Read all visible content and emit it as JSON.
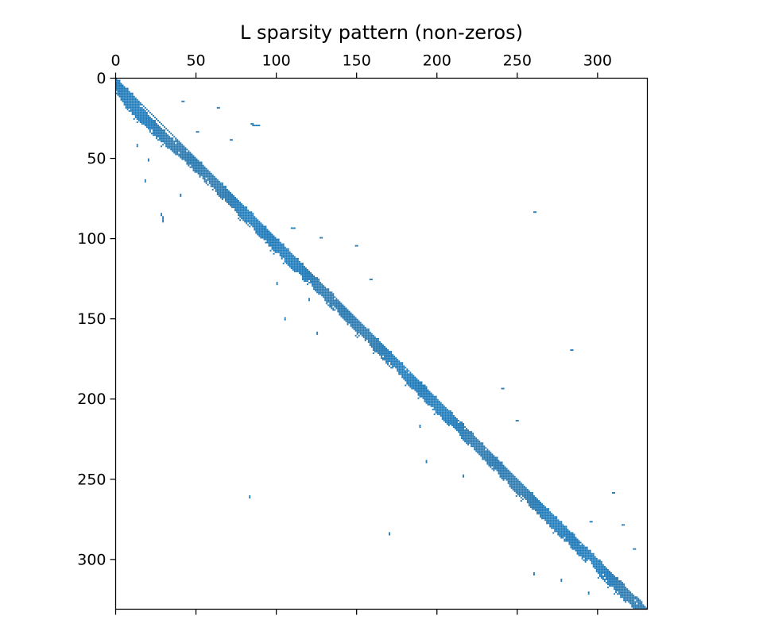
{
  "chart_data": {
    "type": "heatmap",
    "title": "L sparsity pattern (non-zeros)",
    "xlabel": "",
    "ylabel": "",
    "matrix_size": 331,
    "xlim": [
      0,
      331
    ],
    "ylim": [
      331,
      0
    ],
    "xticks": [
      0,
      50,
      100,
      150,
      200,
      250,
      300
    ],
    "yticks": [
      0,
      50,
      100,
      150,
      200,
      250,
      300
    ],
    "x_axis_position": "top",
    "grid": false,
    "marker_color": "#1f77b4",
    "diagonal_band": [
      {
        "row_start": 0,
        "row_end": 12,
        "col_start": 0,
        "col_end": 10
      },
      {
        "row_start": 8,
        "row_end": 22,
        "col_start": 5,
        "col_end": 20
      },
      {
        "row_start": 18,
        "row_end": 38,
        "col_start": 15,
        "col_end": 40
      },
      {
        "row_start": 38,
        "row_end": 55,
        "col_start": 38,
        "col_end": 55
      },
      {
        "row_start": 55,
        "row_end": 75,
        "col_start": 55,
        "col_end": 75
      },
      {
        "row_start": 75,
        "row_end": 100,
        "col_start": 75,
        "col_end": 100
      },
      {
        "row_start": 95,
        "row_end": 115,
        "col_start": 95,
        "col_end": 115
      },
      {
        "row_start": 108,
        "row_end": 125,
        "col_start": 108,
        "col_end": 125
      },
      {
        "row_start": 122,
        "row_end": 145,
        "col_start": 122,
        "col_end": 145
      },
      {
        "row_start": 145,
        "row_end": 165,
        "col_start": 145,
        "col_end": 165
      },
      {
        "row_start": 165,
        "row_end": 190,
        "col_start": 165,
        "col_end": 190
      },
      {
        "row_start": 185,
        "row_end": 210,
        "col_start": 185,
        "col_end": 210
      },
      {
        "row_start": 208,
        "row_end": 232,
        "col_start": 208,
        "col_end": 232
      },
      {
        "row_start": 232,
        "row_end": 255,
        "col_start": 232,
        "col_end": 255
      },
      {
        "row_start": 255,
        "row_end": 278,
        "col_start": 255,
        "col_end": 278
      },
      {
        "row_start": 278,
        "row_end": 305,
        "col_start": 278,
        "col_end": 305
      },
      {
        "row_start": 305,
        "row_end": 331,
        "col_start": 305,
        "col_end": 331
      }
    ],
    "off_diagonal_points": [
      [
        14,
        41
      ],
      [
        14,
        42
      ],
      [
        18,
        63
      ],
      [
        18,
        64
      ],
      [
        28,
        84
      ],
      [
        28,
        85
      ],
      [
        29,
        85
      ],
      [
        29,
        86
      ],
      [
        29,
        87
      ],
      [
        29,
        88
      ],
      [
        29,
        89
      ],
      [
        33,
        50
      ],
      [
        33,
        51
      ],
      [
        38,
        71
      ],
      [
        38,
        72
      ],
      [
        41,
        13
      ],
      [
        42,
        13
      ],
      [
        50,
        20
      ],
      [
        51,
        20
      ],
      [
        63,
        18
      ],
      [
        64,
        18
      ],
      [
        72,
        40
      ],
      [
        73,
        40
      ],
      [
        83,
        260
      ],
      [
        83,
        261
      ],
      [
        84,
        28
      ],
      [
        85,
        28
      ],
      [
        86,
        29
      ],
      [
        87,
        29
      ],
      [
        88,
        29
      ],
      [
        89,
        29
      ],
      [
        93,
        109
      ],
      [
        93,
        110
      ],
      [
        93,
        111
      ],
      [
        99,
        127
      ],
      [
        99,
        128
      ],
      [
        104,
        149
      ],
      [
        104,
        150
      ],
      [
        125,
        158
      ],
      [
        125,
        159
      ],
      [
        127,
        100
      ],
      [
        128,
        100
      ],
      [
        137,
        120
      ],
      [
        138,
        120
      ],
      [
        149,
        105
      ],
      [
        150,
        105
      ],
      [
        158,
        125
      ],
      [
        159,
        125
      ],
      [
        169,
        283
      ],
      [
        169,
        284
      ],
      [
        193,
        240
      ],
      [
        193,
        241
      ],
      [
        213,
        249
      ],
      [
        213,
        250
      ],
      [
        216,
        189
      ],
      [
        217,
        189
      ],
      [
        238,
        193
      ],
      [
        239,
        193
      ],
      [
        247,
        216
      ],
      [
        248,
        216
      ],
      [
        258,
        309
      ],
      [
        258,
        310
      ],
      [
        260,
        83
      ],
      [
        261,
        83
      ],
      [
        276,
        295
      ],
      [
        276,
        296
      ],
      [
        278,
        315
      ],
      [
        278,
        316
      ],
      [
        283,
        170
      ],
      [
        284,
        170
      ],
      [
        293,
        322
      ],
      [
        293,
        323
      ],
      [
        308,
        260
      ],
      [
        309,
        260
      ],
      [
        312,
        277
      ],
      [
        313,
        277
      ],
      [
        320,
        294
      ],
      [
        321,
        294
      ]
    ]
  }
}
